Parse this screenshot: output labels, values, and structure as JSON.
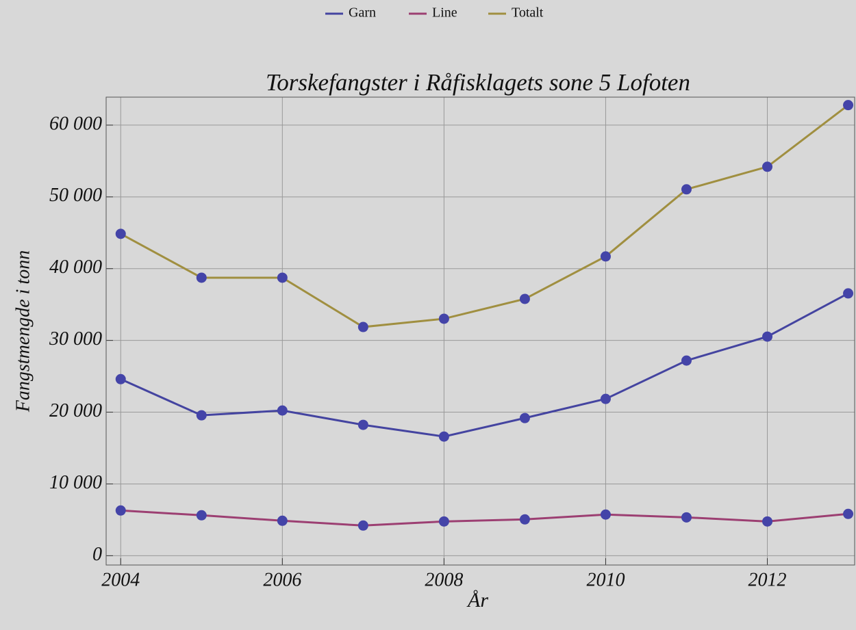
{
  "chart_data": {
    "type": "line",
    "title": "Torskefangster i Råfisklagets sone 5   Lofoten",
    "x_label": "År",
    "y_label": "Fangstmengde i tonn",
    "x": [
      2004,
      2005,
      2006,
      2007,
      2008,
      2009,
      2010,
      2011,
      2012,
      2013
    ],
    "series": [
      {
        "name": "Garn",
        "color": "#4444a0",
        "values": [
          24600,
          19560,
          20230,
          18230,
          16600,
          19180,
          21850,
          27190,
          30530,
          36550
        ]
      },
      {
        "name": "Line",
        "color": "#9c3f72",
        "values": [
          6300,
          5630,
          4870,
          4200,
          4770,
          5060,
          5730,
          5340,
          4770,
          5820
        ]
      },
      {
        "name": "Totalt",
        "color": "#a08f40",
        "values": [
          44850,
          38740,
          38740,
          31870,
          33020,
          35780,
          41700,
          51050,
          54200,
          62790
        ]
      }
    ],
    "marker_color": "#4444a8",
    "xlim": [
      2003.82,
      2013.08
    ],
    "ylim": [
      -1300,
      63900
    ],
    "xticks": [
      2004,
      2006,
      2008,
      2010,
      2012
    ],
    "yticks": [
      0,
      {
        "value": 10000,
        "label": "10 000"
      },
      {
        "value": 20000,
        "label": "20 000"
      },
      {
        "value": 30000,
        "label": "30 000"
      },
      {
        "value": 40000,
        "label": "40 000"
      },
      {
        "value": 50000,
        "label": "50 000"
      },
      {
        "value": 60000,
        "label": "60 000"
      }
    ],
    "grid": true,
    "legend": "top"
  }
}
